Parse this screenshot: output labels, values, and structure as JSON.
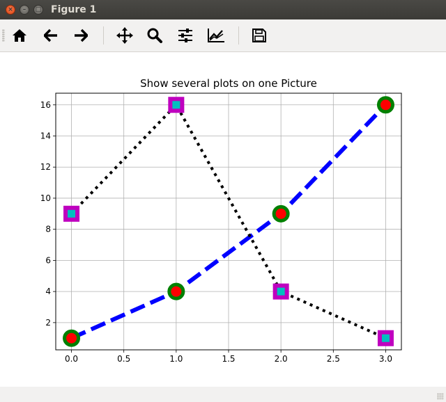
{
  "window": {
    "title": "Figure 1",
    "buttons": {
      "close": "×",
      "minimize": "–",
      "maximize": "□"
    }
  },
  "toolbar": {
    "tools": [
      {
        "id": "home",
        "icon": "home-icon"
      },
      {
        "id": "back",
        "icon": "arrow-left-icon"
      },
      {
        "id": "forward",
        "icon": "arrow-right-icon"
      },
      {
        "id": "pan",
        "icon": "move-icon"
      },
      {
        "id": "zoom",
        "icon": "magnifier-icon"
      },
      {
        "id": "configure",
        "icon": "sliders-icon"
      },
      {
        "id": "edit",
        "icon": "line-chart-icon"
      },
      {
        "id": "save",
        "icon": "floppy-disk-icon"
      }
    ]
  },
  "status": {
    "text": ""
  },
  "chart_data": {
    "type": "line",
    "title": "Show several plots on one Picture",
    "xlabel": "",
    "ylabel": "",
    "xlim": [
      -0.15,
      3.15
    ],
    "ylim": [
      0.25,
      16.75
    ],
    "xticks": [
      0.0,
      0.5,
      1.0,
      1.5,
      2.0,
      2.5,
      3.0
    ],
    "xtick_labels": [
      "0.0",
      "0.5",
      "1.0",
      "1.5",
      "2.0",
      "2.5",
      "3.0"
    ],
    "yticks": [
      2,
      4,
      6,
      8,
      10,
      12,
      14,
      16
    ],
    "ytick_labels": [
      "2",
      "4",
      "6",
      "8",
      "10",
      "12",
      "14",
      "16"
    ],
    "grid": true,
    "series": [
      {
        "x": [
          0,
          1,
          2,
          3
        ],
        "y": [
          1,
          4,
          9,
          16
        ],
        "line_color": "#0000ff",
        "line_style": "dashed",
        "marker": "circle",
        "marker_face": "#ff0000",
        "marker_edge": "#008000"
      },
      {
        "x": [
          0,
          1,
          2,
          3
        ],
        "y": [
          9,
          16,
          4,
          1
        ],
        "line_color": "#000000",
        "line_style": "dotted",
        "marker": "square",
        "marker_face": "#00bfbf",
        "marker_edge": "#bf00bf"
      }
    ]
  }
}
